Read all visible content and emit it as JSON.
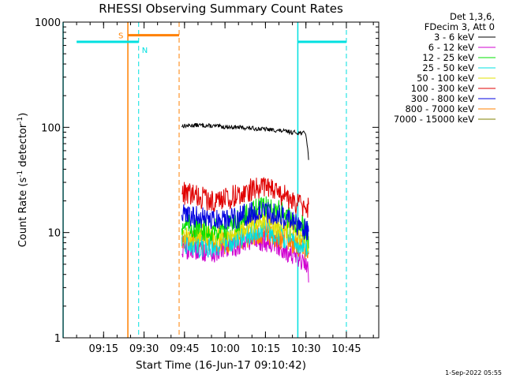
{
  "chart_data": {
    "type": "line",
    "title": "RHESSI Observing Summary Count Rates",
    "xlabel": "Start Time (16-Jun-17 09:10:42)",
    "ylabel_main": "Count Rate (s",
    "ylabel_sup1": "-1",
    "ylabel_mid": " detector",
    "ylabel_sup2": "-1",
    "ylabel_end": ")",
    "yscale": "log",
    "ylim": [
      1,
      1000
    ],
    "xlim_minutes": [
      9.0,
      10.95
    ],
    "x_ticks": [
      "09:15",
      "09:30",
      "09:45",
      "10:00",
      "10:15",
      "10:30",
      "10:45"
    ],
    "y_ticks": [
      "1",
      "10",
      "100",
      "1000"
    ],
    "legend_header": [
      "Det 1,3,6,",
      "FDecim 3, Att 0"
    ],
    "series": [
      {
        "name": "3 - 6 keV",
        "color": "#000000",
        "x": [
          "09:44",
          "09:50",
          "09:55",
          "10:00",
          "10:05",
          "10:10",
          "10:15",
          "10:20",
          "10:25",
          "10:30",
          "10:31"
        ],
        "values": [
          103,
          105,
          103,
          101,
          100,
          98,
          96,
          93,
          90,
          88,
          50
        ]
      },
      {
        "name": "6 - 12 keV",
        "color": "#d000d0",
        "x": [
          "09:44",
          "09:50",
          "09:55",
          "10:00",
          "10:05",
          "10:10",
          "10:15",
          "10:20",
          "10:25",
          "10:30",
          "10:31"
        ],
        "values": [
          7,
          7,
          6.5,
          7,
          7.5,
          8.5,
          8.5,
          7.5,
          6,
          5,
          4
        ]
      },
      {
        "name": "12 - 25 keV",
        "color": "#00e000",
        "x": [
          "09:44",
          "09:50",
          "09:55",
          "10:00",
          "10:05",
          "10:10",
          "10:15",
          "10:20",
          "10:25",
          "10:30",
          "10:31"
        ],
        "values": [
          12,
          11,
          10.5,
          11,
          13,
          16,
          18,
          16,
          13,
          11,
          9
        ]
      },
      {
        "name": "25 - 50 keV",
        "color": "#00e0e0",
        "x": [
          "09:44",
          "09:50",
          "09:55",
          "10:00",
          "10:05",
          "10:10",
          "10:15",
          "10:20",
          "10:25",
          "10:30",
          "10:31"
        ],
        "values": [
          8,
          7.5,
          7.5,
          8,
          9,
          10,
          10.5,
          9.5,
          8.5,
          7.5,
          7
        ]
      },
      {
        "name": "50 - 100 keV",
        "color": "#e0e000",
        "x": [
          "09:44",
          "09:50",
          "09:55",
          "10:00",
          "10:05",
          "10:10",
          "10:15",
          "10:20",
          "10:25",
          "10:30",
          "10:31"
        ],
        "values": [
          10,
          9.5,
          9,
          9.5,
          10.5,
          12,
          12.5,
          11.5,
          10,
          9,
          8
        ]
      },
      {
        "name": "100 - 300 keV",
        "color": "#e00000",
        "x": [
          "09:44",
          "09:50",
          "09:55",
          "10:00",
          "10:05",
          "10:10",
          "10:15",
          "10:20",
          "10:25",
          "10:30",
          "10:31"
        ],
        "values": [
          24,
          22,
          20,
          21,
          23,
          26,
          27,
          24,
          20,
          17,
          17
        ]
      },
      {
        "name": "300 - 800 keV",
        "color": "#0000e0",
        "x": [
          "09:44",
          "09:50",
          "09:55",
          "10:00",
          "10:05",
          "10:10",
          "10:15",
          "10:20",
          "10:25",
          "10:30",
          "10:31"
        ],
        "values": [
          15,
          14,
          13,
          13,
          14,
          15.5,
          16,
          14.5,
          12.5,
          10.5,
          10
        ]
      },
      {
        "name": "800 - 7000 keV",
        "color": "#ff8000",
        "x": [
          "09:44",
          "09:50",
          "09:55",
          "10:00",
          "10:05",
          "10:10",
          "10:15",
          "10:20",
          "10:25",
          "10:30",
          "10:31"
        ],
        "values": [
          9,
          8.5,
          8,
          8,
          8.5,
          9.5,
          10,
          9,
          8,
          7,
          6.5
        ]
      },
      {
        "name": "7000 - 15000 keV",
        "color": "#808000",
        "x": [
          "09:44",
          "09:50",
          "09:55",
          "10:00",
          "10:05",
          "10:10",
          "10:15",
          "10:20",
          "10:25",
          "10:30",
          "10:31"
        ],
        "values": [
          null,
          null,
          null,
          null,
          null,
          null,
          null,
          null,
          null,
          null,
          null
        ]
      }
    ],
    "markers": {
      "saa_label": "S",
      "night_label": "N",
      "saa_color": "#ff8000",
      "night_color": "#00e0e0",
      "night_bar_level": 650,
      "saa_bar_level": 750,
      "night_intervals": [
        [
          "09:05",
          "09:28"
        ],
        [
          "10:27",
          "10:45"
        ]
      ],
      "saa_interval": [
        "09:24",
        "09:43"
      ],
      "solid_verticals": [
        {
          "x": "09:00",
          "color": "#00e0e0"
        },
        {
          "x": "09:24",
          "color": "#ff8000"
        },
        {
          "x": "10:27",
          "color": "#00e0e0"
        }
      ],
      "dashed_verticals": [
        {
          "x": "09:28",
          "color": "#00e0e0"
        },
        {
          "x": "09:43",
          "color": "#ff8000"
        },
        {
          "x": "10:45",
          "color": "#00e0e0"
        }
      ]
    },
    "grid": false,
    "legend_position": "right"
  },
  "footer": {
    "timestamp": "1-Sep-2022 05:55"
  }
}
